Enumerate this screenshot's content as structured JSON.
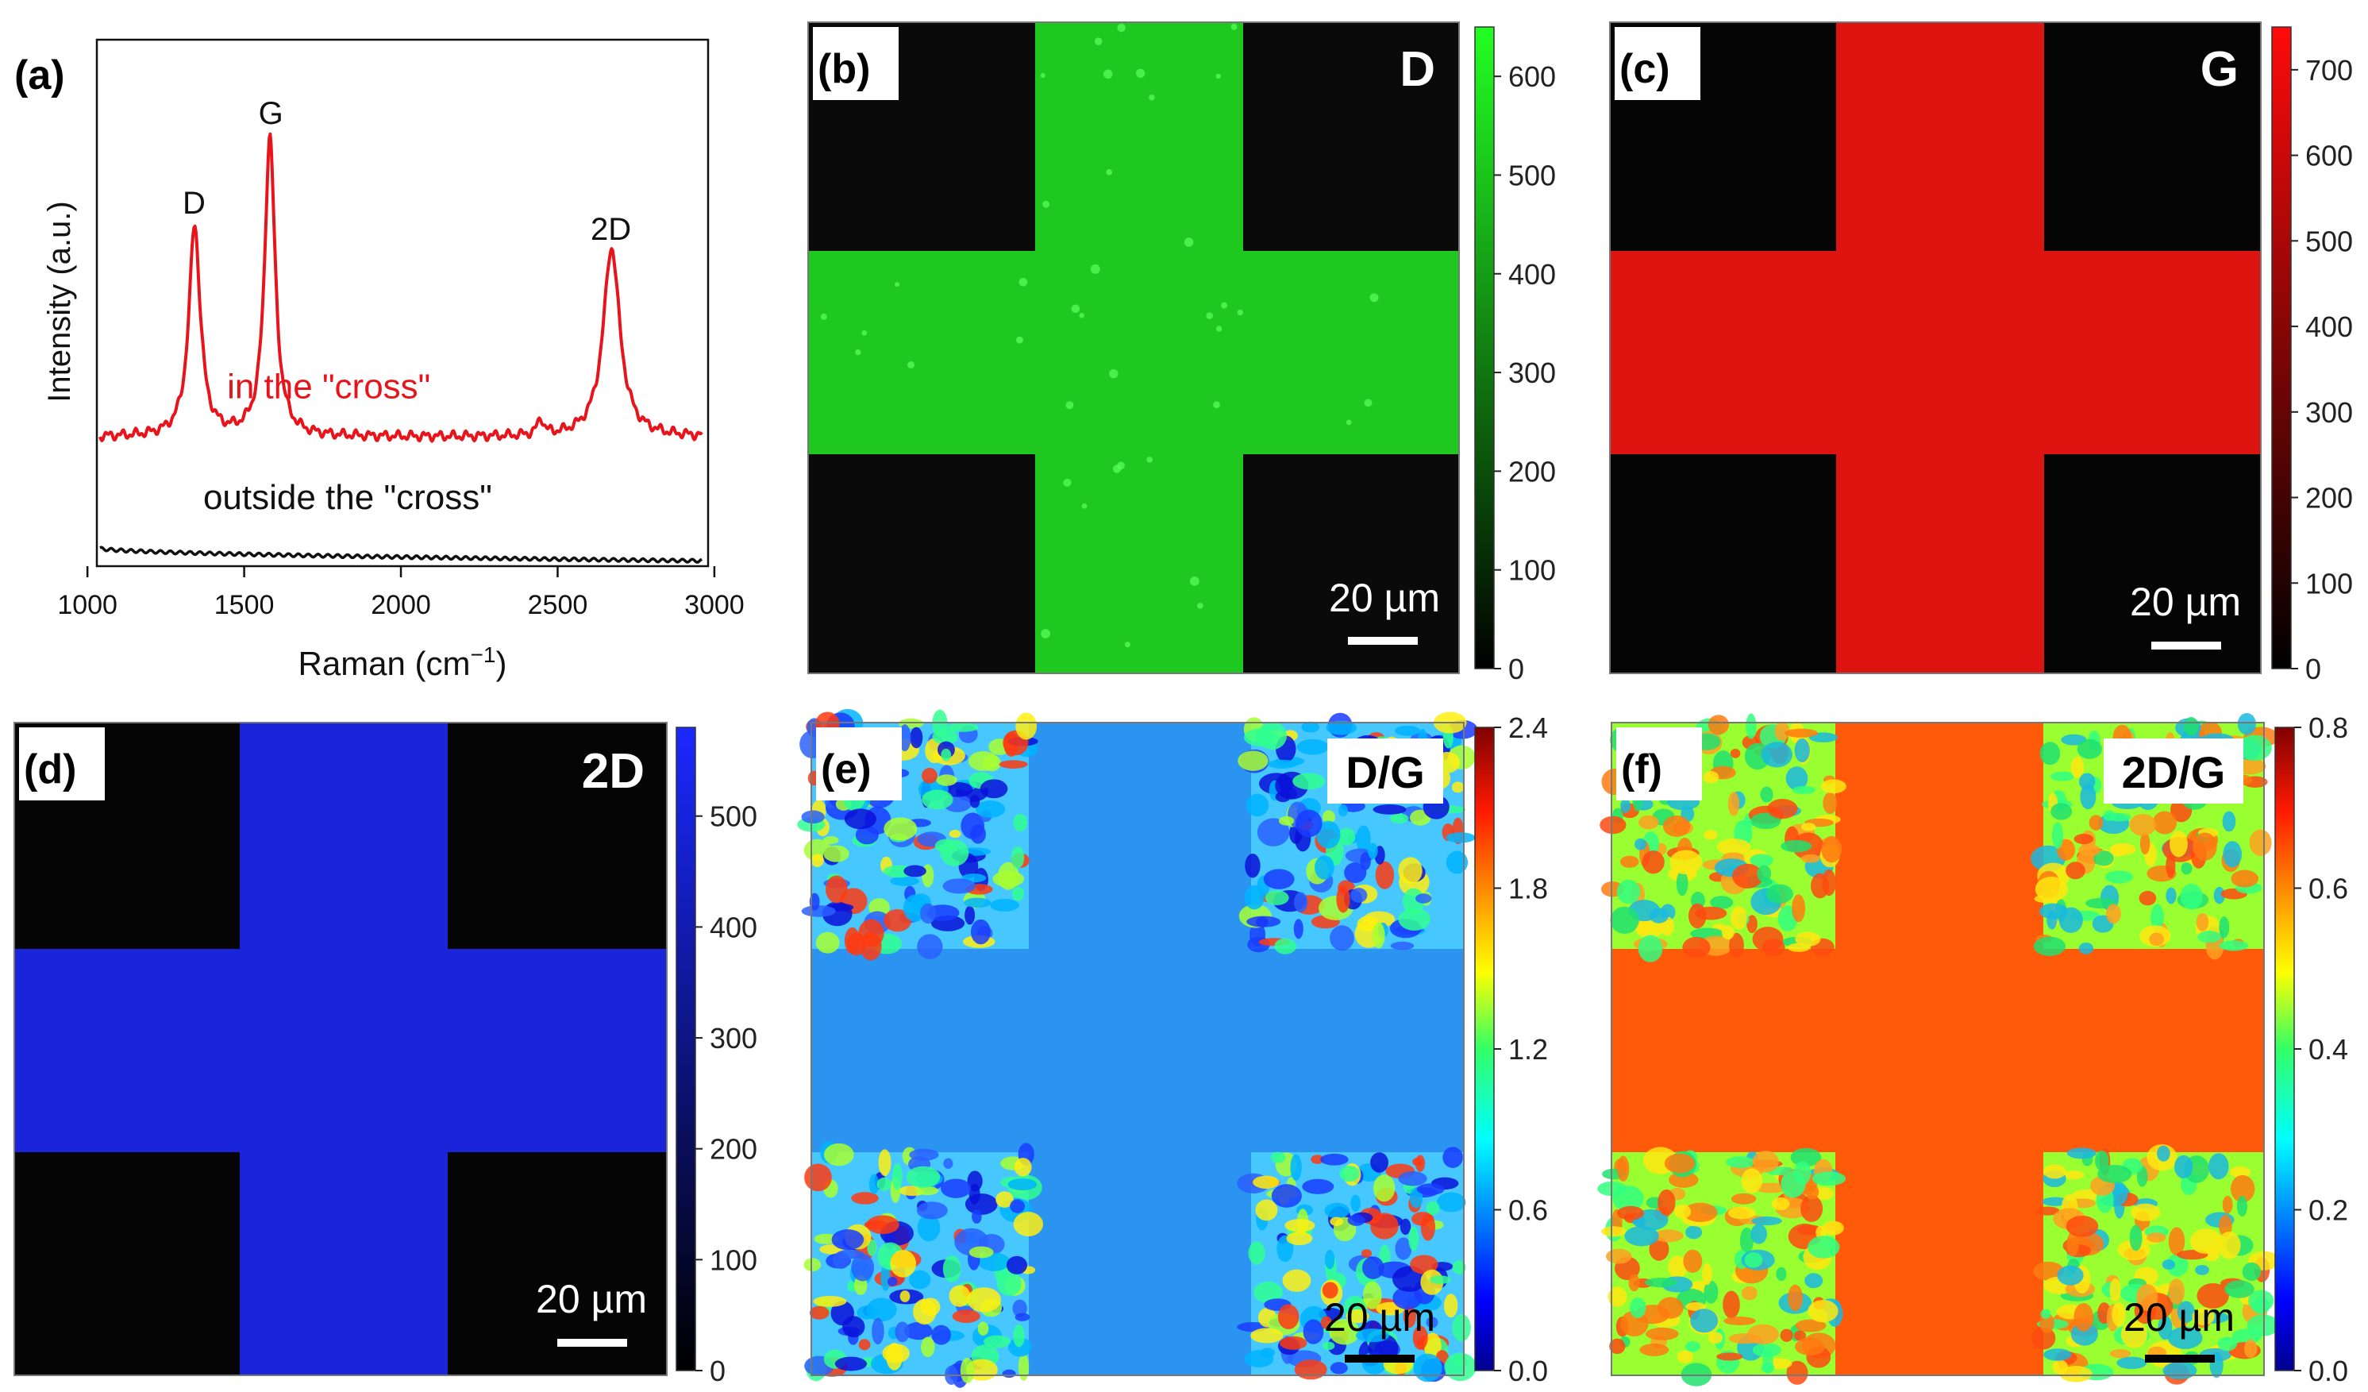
{
  "colors": {
    "raman_cross": "#e8141c",
    "raman_outside": "#111111",
    "green": "#22ff22",
    "red": "#ff1a10",
    "blue": "#1a28ff",
    "field_dg": "#2a94f0",
    "field_2dg": "#ff5a0a",
    "background_dark": "#050505"
  },
  "chart_data": [
    {
      "type": "line",
      "panel": "(a)",
      "xlabel": "Raman (cm",
      "xlabel_sup": "−1",
      "xlabel_close": ")",
      "ylabel": "Intensity (a.u.)",
      "xlim": [
        1030,
        2980
      ],
      "ylim": [
        0,
        1
      ],
      "xticks": [
        "1000",
        "1500",
        "2000",
        "2500",
        "3000"
      ],
      "xtick_values": [
        1000,
        1500,
        2000,
        2500,
        3000
      ],
      "peak_labels": [
        {
          "text": "D",
          "x": 1340,
          "y": 0.67
        },
        {
          "text": "G",
          "x": 1585,
          "y": 0.84
        },
        {
          "text": "2D",
          "x": 2670,
          "y": 0.62
        }
      ],
      "series": [
        {
          "name": "in the \"cross\"",
          "color": "#e8141c",
          "baseline": 0.245,
          "peaks": [
            {
              "center": 1342,
              "height": 0.4,
              "width": 22
            },
            {
              "center": 1582,
              "height": 0.57,
              "width": 20
            },
            {
              "center": 2446,
              "height": 0.03,
              "width": 12
            },
            {
              "center": 2672,
              "height": 0.36,
              "width": 32
            }
          ],
          "label_x": 1770,
          "label_y": 0.34
        },
        {
          "name": "outside the \"cross\"",
          "color": "#111111",
          "baseline_start": 0.035,
          "baseline_end": 0.01,
          "peaks": [],
          "label_x": 1830,
          "label_y": 0.13
        }
      ]
    },
    {
      "type": "heatmap",
      "panel": "(b)",
      "title": "D",
      "scale_bar": "20 µm",
      "colorscale": [
        "#000000",
        "#22ff22"
      ],
      "field_value": 0.68,
      "background_value": 0.05,
      "colorbar_range": [
        0,
        650
      ],
      "colorbar_ticks": [
        0,
        100,
        200,
        300,
        400,
        500,
        600
      ]
    },
    {
      "type": "heatmap",
      "panel": "(c)",
      "title": "G",
      "scale_bar": "20 µm",
      "colorscale": [
        "#000000",
        "#ff0a0a"
      ],
      "field_value": 0.82,
      "background_value": 0.03,
      "colorbar_range": [
        0,
        750
      ],
      "colorbar_ticks": [
        0,
        100,
        200,
        300,
        400,
        500,
        600,
        700
      ]
    },
    {
      "type": "heatmap",
      "panel": "(d)",
      "title": "2D",
      "scale_bar": "20 µm",
      "colorscale": [
        "#000000",
        "#1a28ff"
      ],
      "field_value": 0.72,
      "background_value": 0.04,
      "colorbar_range": [
        0,
        580
      ],
      "colorbar_ticks": [
        0,
        100,
        200,
        300,
        400,
        500
      ]
    },
    {
      "type": "heatmap",
      "panel": "(e)",
      "title": "D/G",
      "scale_bar": "20 µm",
      "colorscale": "jet",
      "field_value": 0.62,
      "background_value": "noisy 0.6–2.4",
      "colorbar_range": [
        0.0,
        2.4
      ],
      "colorbar_ticks": [
        "0.0",
        "0.6",
        "1.2",
        "1.8",
        "2.4"
      ]
    },
    {
      "type": "heatmap",
      "panel": "(f)",
      "title": "2D/G",
      "scale_bar": "20 µm",
      "colorscale": "jet",
      "field_value": 0.68,
      "background_value": "noisy 0.3–0.6",
      "colorbar_range": [
        0.0,
        0.8
      ],
      "colorbar_ticks": [
        "0.0",
        "0.2",
        "0.4",
        "0.6",
        "0.8"
      ]
    }
  ]
}
